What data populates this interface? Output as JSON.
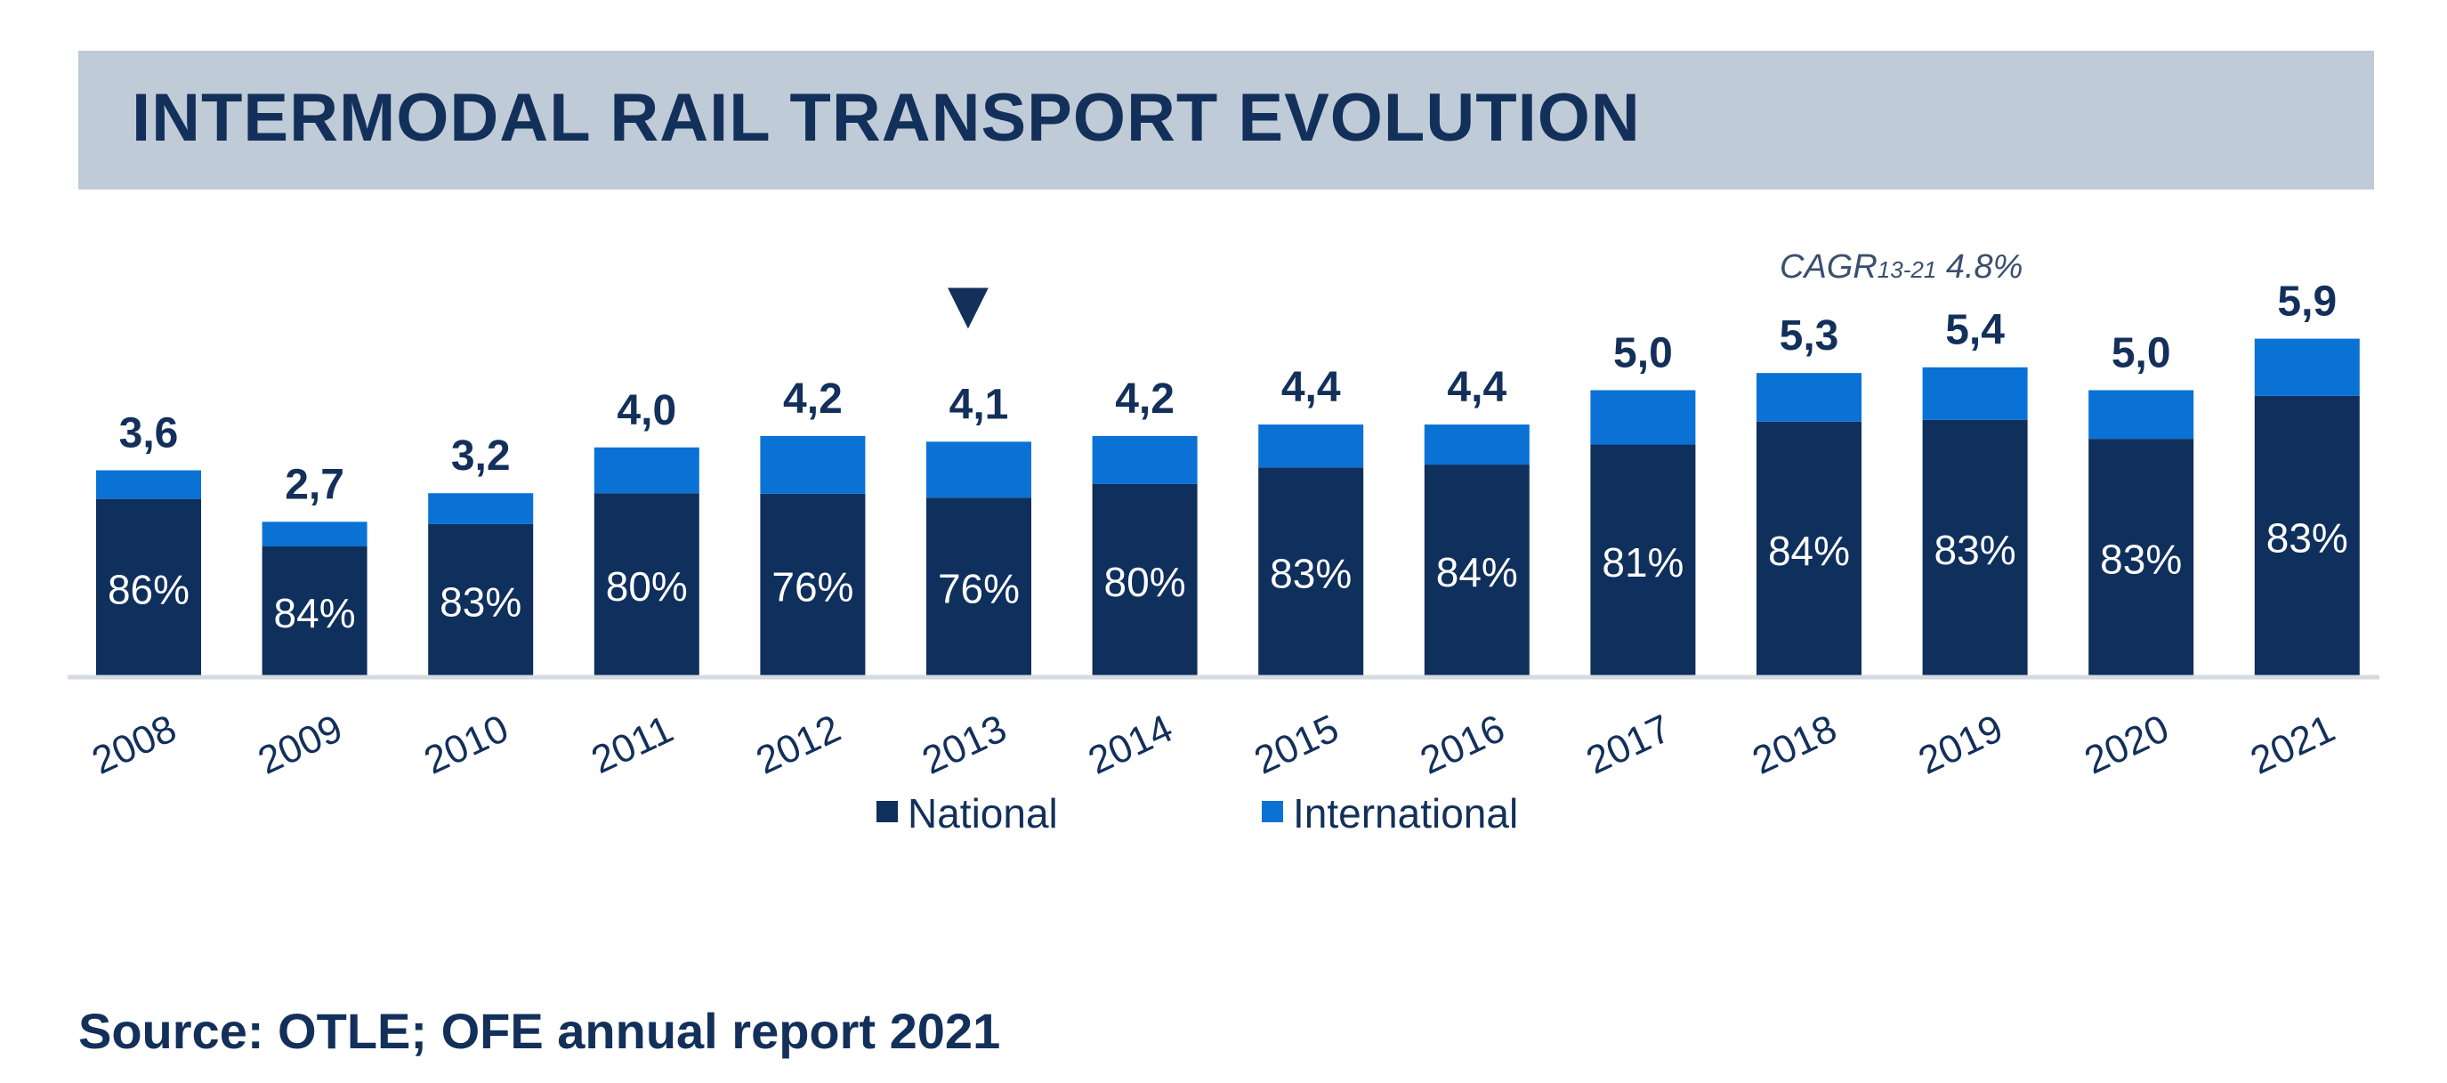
{
  "title": "INTERMODAL RAIL TRANSPORT EVOLUTION",
  "source": "Source: OTLE; OFE annual report 2021",
  "chart_data": {
    "type": "bar",
    "stacked": true,
    "categories": [
      "2008",
      "2009",
      "2010",
      "2011",
      "2012",
      "2013",
      "2014",
      "2015",
      "2016",
      "2017",
      "2018",
      "2019",
      "2020",
      "2021"
    ],
    "totals": [
      3.6,
      2.7,
      3.2,
      4.0,
      4.2,
      4.1,
      4.2,
      4.4,
      4.4,
      5.0,
      5.3,
      5.4,
      5.0,
      5.9
    ],
    "total_labels": [
      "3,6",
      "2,7",
      "3,2",
      "4,0",
      "4,2",
      "4,1",
      "4,2",
      "4,4",
      "4,4",
      "5,0",
      "5,3",
      "5,4",
      "5,0",
      "5,9"
    ],
    "national_share_labels": [
      "86%",
      "84%",
      "83%",
      "80%",
      "76%",
      "76%",
      "80%",
      "83%",
      "84%",
      "81%",
      "84%",
      "83%",
      "83%",
      "83%"
    ],
    "series": [
      {
        "name": "National",
        "values": [
          3.1,
          2.27,
          2.66,
          3.2,
          3.19,
          3.12,
          3.36,
          3.65,
          3.7,
          4.05,
          4.45,
          4.48,
          4.15,
          4.9
        ]
      },
      {
        "name": "International",
        "values": [
          0.5,
          0.43,
          0.54,
          0.8,
          1.01,
          0.98,
          0.84,
          0.75,
          0.7,
          0.95,
          0.85,
          0.92,
          0.85,
          1.0
        ]
      }
    ],
    "colors": {
      "National": "#0f2f5c",
      "International": "#0a72d4",
      "text": "#13305b",
      "axis": "#d6dbe2"
    },
    "ylim": [
      0,
      6.5
    ],
    "annotation": {
      "prefix": "CAGR",
      "subscript": "13-21",
      "value": " 4.8%"
    },
    "marker": {
      "category": "2013",
      "symbol": "▼"
    },
    "legend": {
      "placement": "bottom-center"
    }
  }
}
